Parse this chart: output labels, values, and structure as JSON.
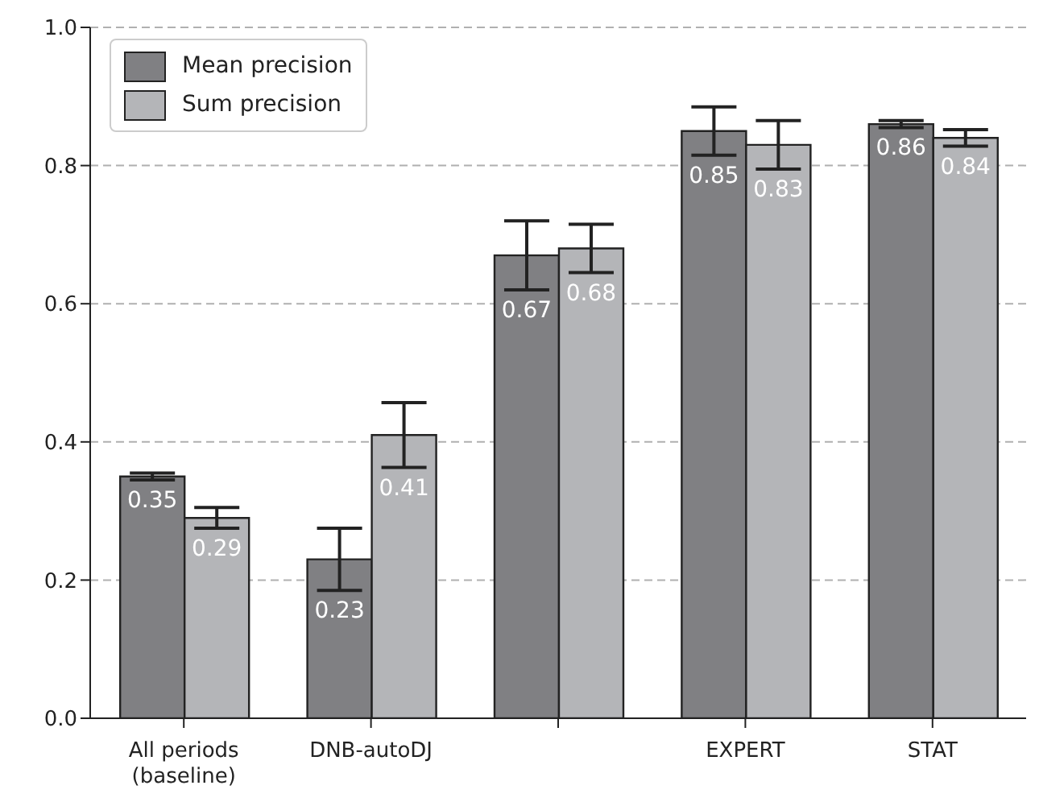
{
  "chart_data": {
    "type": "bar",
    "categories": [
      "All periods\n(baseline)",
      "DNB-autoDJ",
      null,
      "EXPERT",
      "STAT"
    ],
    "series": [
      {
        "name": "Mean precision",
        "color": "#808083",
        "values": [
          0.35,
          0.23,
          0.67,
          0.85,
          0.86
        ],
        "errors": [
          0.005,
          0.045,
          0.05,
          0.035,
          0.005
        ]
      },
      {
        "name": "Sum precision",
        "color": "#b4b5b8",
        "values": [
          0.29,
          0.41,
          0.68,
          0.83,
          0.84
        ],
        "errors": [
          0.015,
          0.047,
          0.035,
          0.035,
          0.012
        ]
      }
    ],
    "ylim": [
      0,
      1.0
    ],
    "yticks": [
      {
        "value": 0,
        "label": "0.0"
      },
      0.2,
      0.4,
      0.6,
      0.8,
      {
        "value": 1,
        "label": "1.0"
      }
    ],
    "grid": "y",
    "legend": "top left",
    "data_labels": true
  }
}
